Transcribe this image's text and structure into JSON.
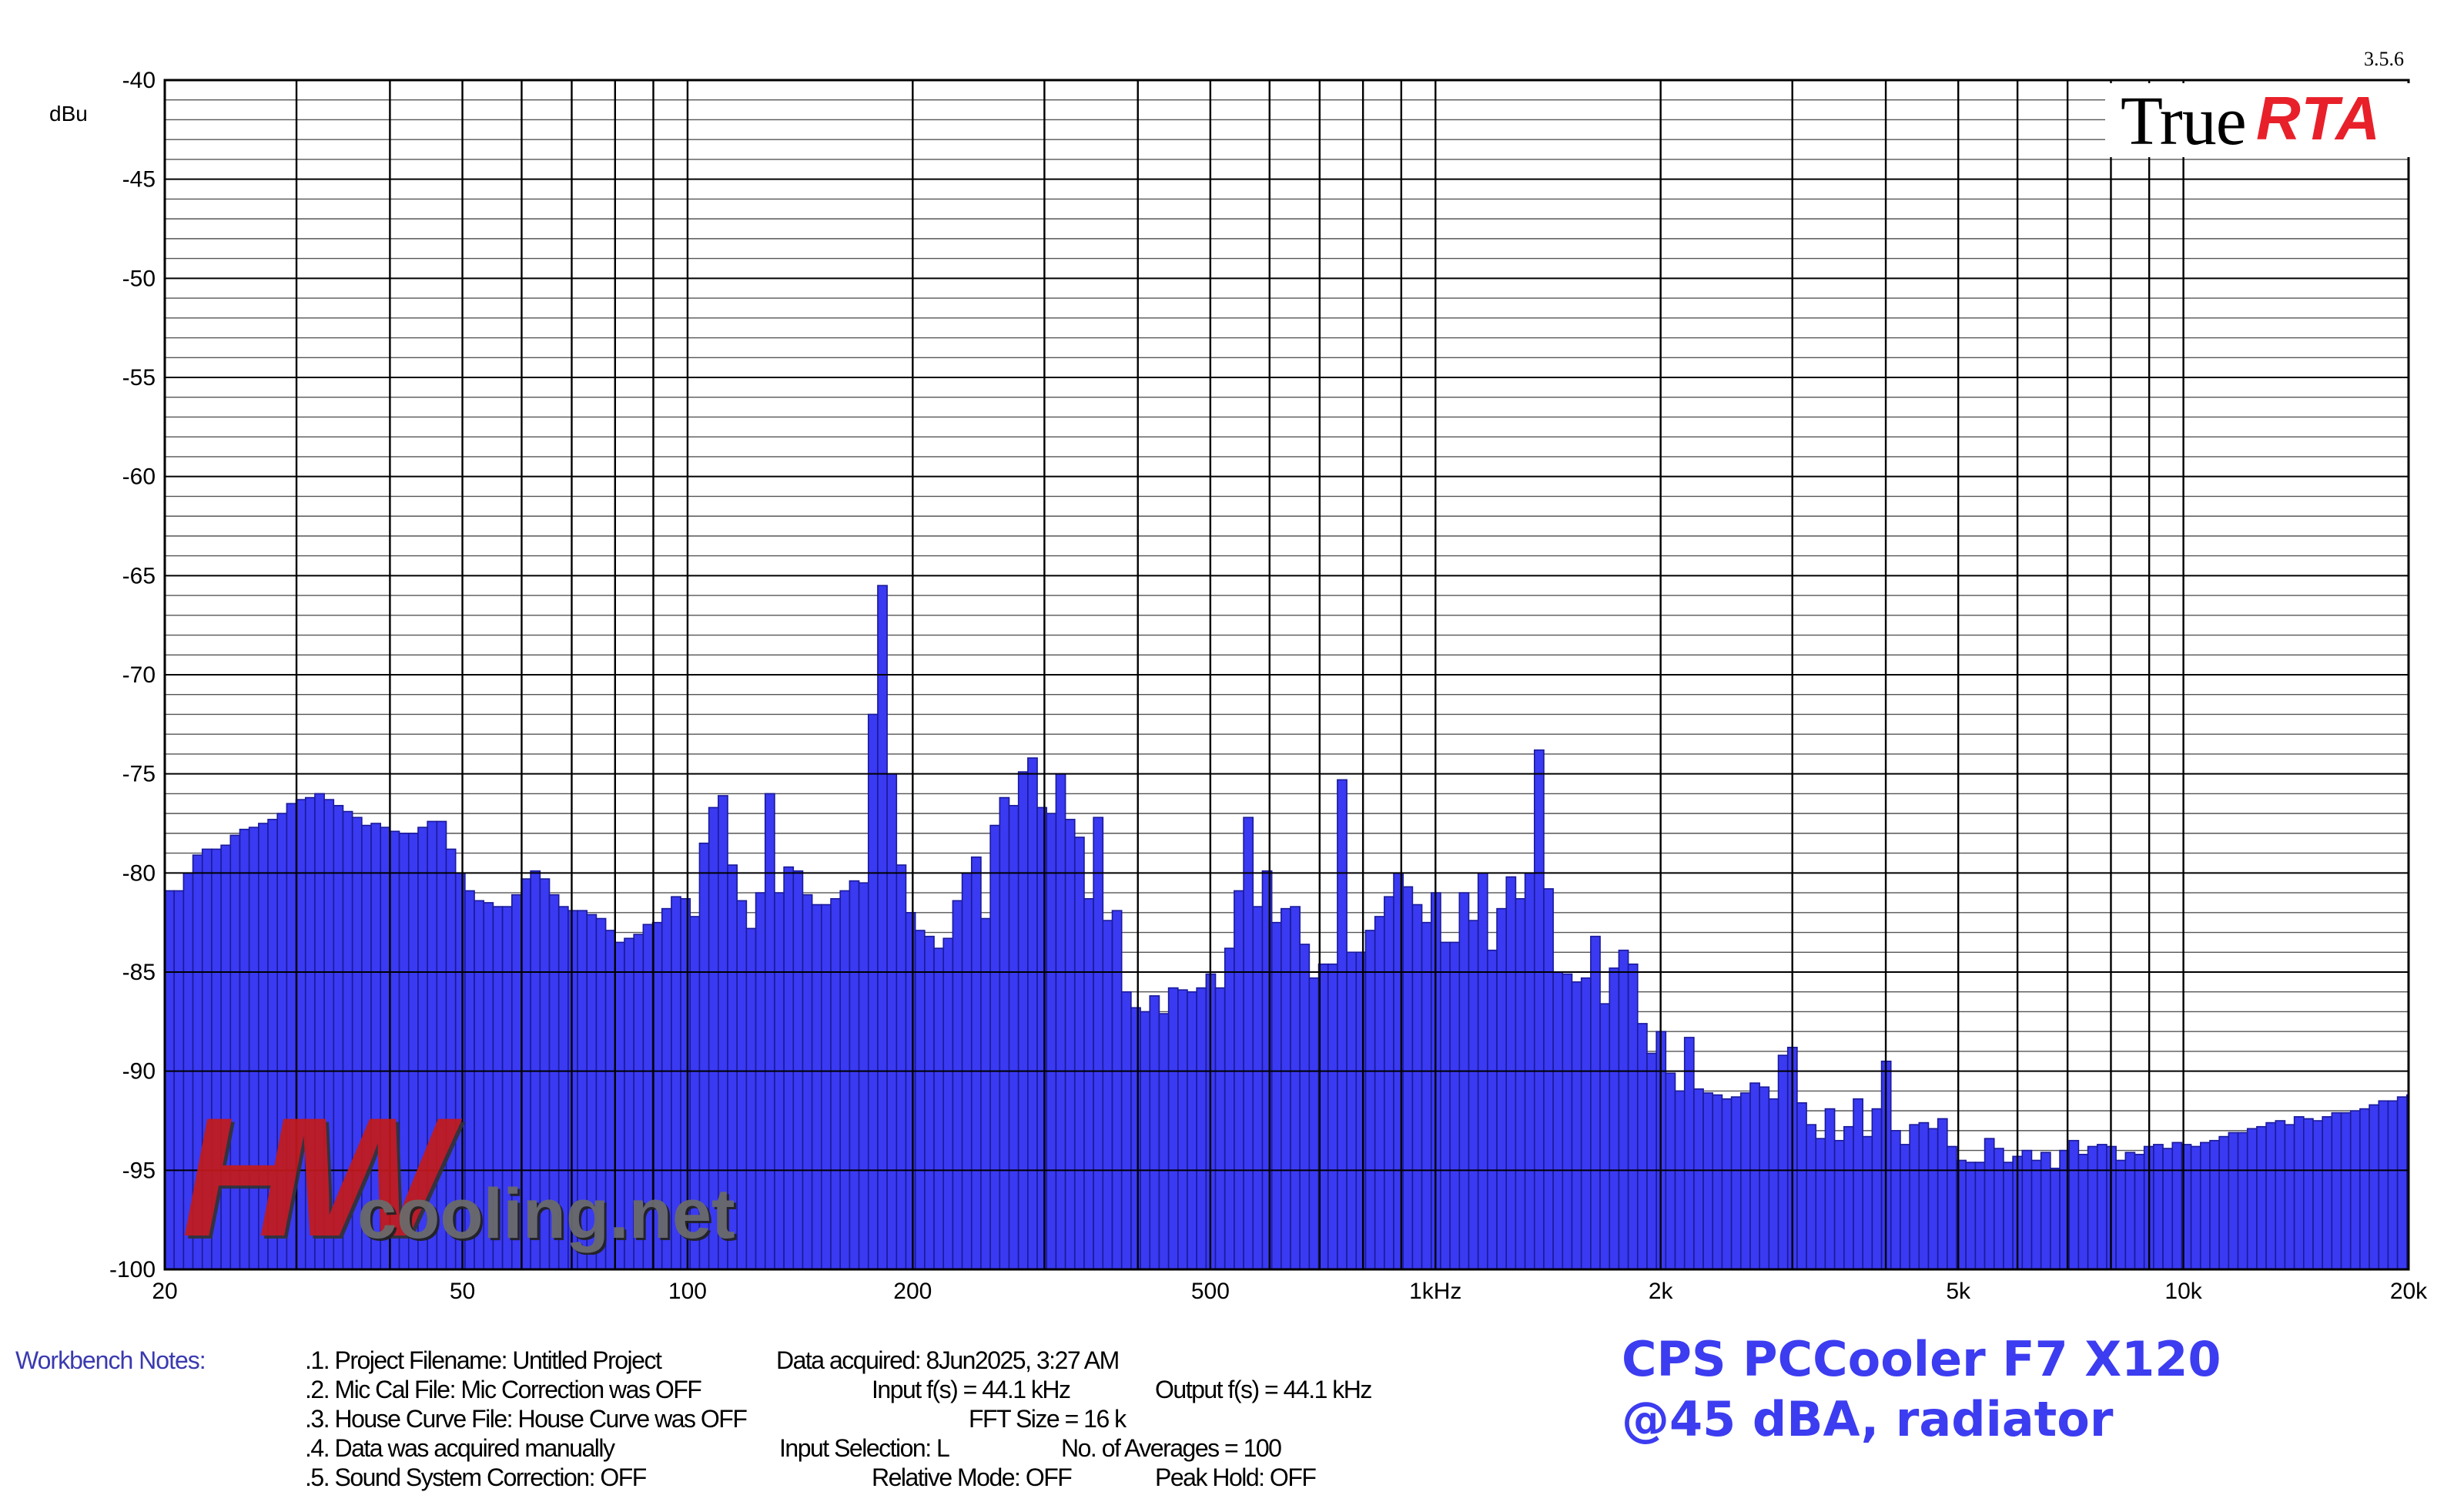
{
  "version": "3.5.6",
  "logo": {
    "word1": "True",
    "word2": "RTA"
  },
  "watermark": {
    "hw": "HW",
    "site": "cooling.net"
  },
  "title": {
    "line1": "CPS PCCooler F7 X120",
    "line2": "@45 dBA, radiator"
  },
  "workbench": {
    "label": "Workbench Notes:",
    "lines": [
      ".1. Project Filename: Untitled Project",
      ".2. Mic Cal File: Mic Correction was OFF",
      ".3. House Curve File: House Curve was OFF",
      ".4. Data was acquired manually",
      ".5. Sound System Correction: OFF"
    ],
    "acquired": "Data acquired: 8Jun2025, 3:27 AM",
    "input_fs": "Input f(s) = 44.1 kHz",
    "output_fs": "Output f(s) = 44.1 kHz",
    "fft_size": "FFT Size = 16 k",
    "input_selection": "Input Selection: L",
    "averages": "No. of Averages = 100",
    "relative_mode": "Relative Mode:  OFF",
    "peak_hold": "Peak Hold: OFF"
  },
  "colors": {
    "bar": "#3a3af2",
    "bar_stroke": "#1a1a9a",
    "grid_major": "#000000",
    "grid_minor": "#555555"
  },
  "chart_data": {
    "type": "bar",
    "ylabel": "dBu",
    "xlabel": "",
    "x_scale": "log",
    "xlim": [
      20,
      20000
    ],
    "ylim": [
      -100,
      -40
    ],
    "yticks": [
      -40,
      -45,
      -50,
      -55,
      -60,
      -65,
      -70,
      -75,
      -80,
      -85,
      -90,
      -95,
      -100
    ],
    "ytick_labels": [
      "-40",
      "-45",
      "-50",
      "-55",
      "-60",
      "-65",
      "-70",
      "-75",
      "-80",
      "-85",
      "-90",
      "-95",
      "-100"
    ],
    "xticks": [
      20,
      50,
      100,
      200,
      500,
      1000,
      2000,
      5000,
      10000,
      20000
    ],
    "xtick_labels": [
      "20",
      "50",
      "100",
      "200",
      "500",
      "1kHz",
      "2k",
      "5k",
      "10k",
      "20k"
    ],
    "grid": true,
    "bars_per_octave": 24,
    "values": [
      -80.9,
      -80.9,
      -80.0,
      -79.1,
      -78.8,
      -78.8,
      -78.6,
      -78.1,
      -77.8,
      -77.7,
      -77.5,
      -77.3,
      -77.0,
      -76.5,
      -76.3,
      -76.2,
      -76.0,
      -76.3,
      -76.6,
      -76.9,
      -77.2,
      -77.6,
      -77.5,
      -77.7,
      -77.9,
      -78.0,
      -78.0,
      -77.7,
      -77.4,
      -77.4,
      -78.8,
      -80.0,
      -80.9,
      -81.4,
      -81.5,
      -81.7,
      -81.7,
      -81.1,
      -80.3,
      -79.9,
      -80.3,
      -81.1,
      -81.7,
      -81.9,
      -81.9,
      -82.1,
      -82.3,
      -82.9,
      -83.5,
      -83.3,
      -83.1,
      -82.6,
      -82.5,
      -81.8,
      -81.2,
      -81.3,
      -82.2,
      -78.5,
      -76.7,
      -76.1,
      -79.6,
      -81.4,
      -82.8,
      -81.0,
      -76.0,
      -81.0,
      -79.7,
      -79.9,
      -81.1,
      -81.6,
      -81.6,
      -81.3,
      -80.9,
      -80.4,
      -80.5,
      -72.0,
      -65.5,
      -75.0,
      -79.6,
      -82.0,
      -82.9,
      -83.2,
      -83.8,
      -83.3,
      -81.4,
      -80.0,
      -79.2,
      -82.3,
      -77.6,
      -76.2,
      -76.6,
      -74.9,
      -74.2,
      -76.7,
      -77.0,
      -75.0,
      -77.3,
      -78.2,
      -81.3,
      -77.2,
      -82.4,
      -81.9,
      -86.0,
      -86.8,
      -87.0,
      -86.2,
      -87.1,
      -85.8,
      -85.9,
      -86.0,
      -85.8,
      -85.1,
      -85.8,
      -83.8,
      -80.9,
      -77.2,
      -81.7,
      -79.9,
      -82.5,
      -81.8,
      -81.7,
      -83.6,
      -85.3,
      -84.6,
      -84.6,
      -75.3,
      -84.0,
      -84.0,
      -82.9,
      -82.2,
      -81.2,
      -80.0,
      -80.7,
      -81.6,
      -82.5,
      -81.0,
      -83.5,
      -83.5,
      -81.0,
      -82.4,
      -80.0,
      -83.9,
      -81.8,
      -80.2,
      -81.3,
      -80.0,
      -73.8,
      -80.8,
      -85.0,
      -85.1,
      -85.5,
      -85.3,
      -83.2,
      -86.6,
      -84.8,
      -83.9,
      -84.6,
      -87.6,
      -89.1,
      -88.0,
      -90.1,
      -91.0,
      -88.3,
      -90.9,
      -91.1,
      -91.2,
      -91.4,
      -91.3,
      -91.1,
      -90.6,
      -90.8,
      -91.4,
      -89.2,
      -88.8,
      -91.6,
      -92.7,
      -93.4,
      -91.9,
      -93.5,
      -92.8,
      -91.4,
      -93.3,
      -91.9,
      -89.5,
      -93.0,
      -93.7,
      -92.7,
      -92.6,
      -92.9,
      -92.4,
      -93.8,
      -94.5,
      -94.6,
      -94.6,
      -93.4,
      -93.9,
      -94.6,
      -94.3,
      -94.0,
      -94.5,
      -94.1,
      -94.9,
      -94.0,
      -93.5,
      -94.2,
      -93.8,
      -93.7,
      -93.8,
      -94.5,
      -94.1,
      -94.2,
      -93.8,
      -93.7,
      -93.9,
      -93.6,
      -93.7,
      -93.8,
      -93.6,
      -93.5,
      -93.3,
      -93.1,
      -93.1,
      -92.9,
      -92.8,
      -92.6,
      -92.5,
      -92.7,
      -92.3,
      -92.4,
      -92.5,
      -92.3,
      -92.1,
      -92.1,
      -92.0,
      -91.9,
      -91.7,
      -91.5,
      -91.5,
      -91.3,
      -91.2
    ]
  }
}
